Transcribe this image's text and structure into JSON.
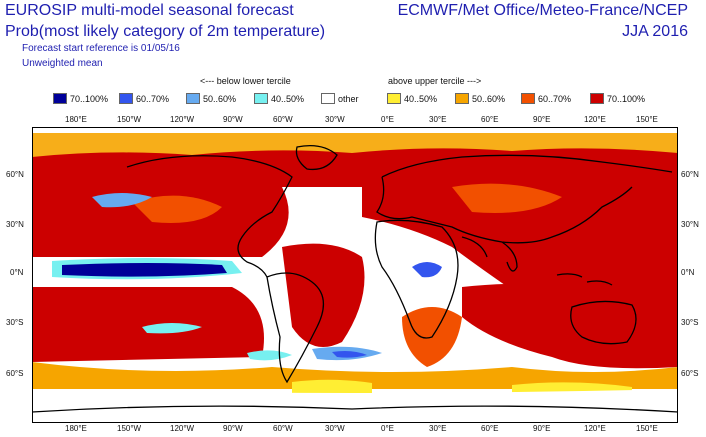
{
  "header": {
    "title_line1": "EUROSIP multi-model seasonal forecast",
    "title_line2": "Prob(most likely category of 2m temperature)",
    "subtitle_line1": "Forecast start reference is 01/05/16",
    "subtitle_line2": "Unweighted mean",
    "right_line1": "ECMWF/Met Office/Meteo-France/NCEP",
    "right_line2": "JJA 2016"
  },
  "legend": {
    "below_header": "<--- below lower tercile",
    "above_header": "above upper tercile --->",
    "items": [
      {
        "label": "70..100%",
        "color": "#000099"
      },
      {
        "label": "60..70%",
        "color": "#3355ee"
      },
      {
        "label": "50..60%",
        "color": "#66aaf0"
      },
      {
        "label": "40..50%",
        "color": "#77f0f0"
      },
      {
        "label": "other",
        "color": "#ffffff"
      },
      {
        "label": "40..50%",
        "color": "#ffee33"
      },
      {
        "label": "50..60%",
        "color": "#f6a500"
      },
      {
        "label": "60..70%",
        "color": "#f25000"
      },
      {
        "label": "70..100%",
        "color": "#cc0000"
      }
    ]
  },
  "map": {
    "lon_labels": [
      "180°E",
      "150°W",
      "120°W",
      "90°W",
      "60°W",
      "30°W",
      "0°E",
      "30°E",
      "60°E",
      "90°E",
      "120°E",
      "150°E"
    ],
    "lat_labels_left": [
      "60°N",
      "30°N",
      "0°N",
      "30°S",
      "60°S"
    ],
    "lat_labels_right": [
      "60°N",
      "30°N",
      "0°N",
      "30°S",
      "60°S"
    ]
  }
}
